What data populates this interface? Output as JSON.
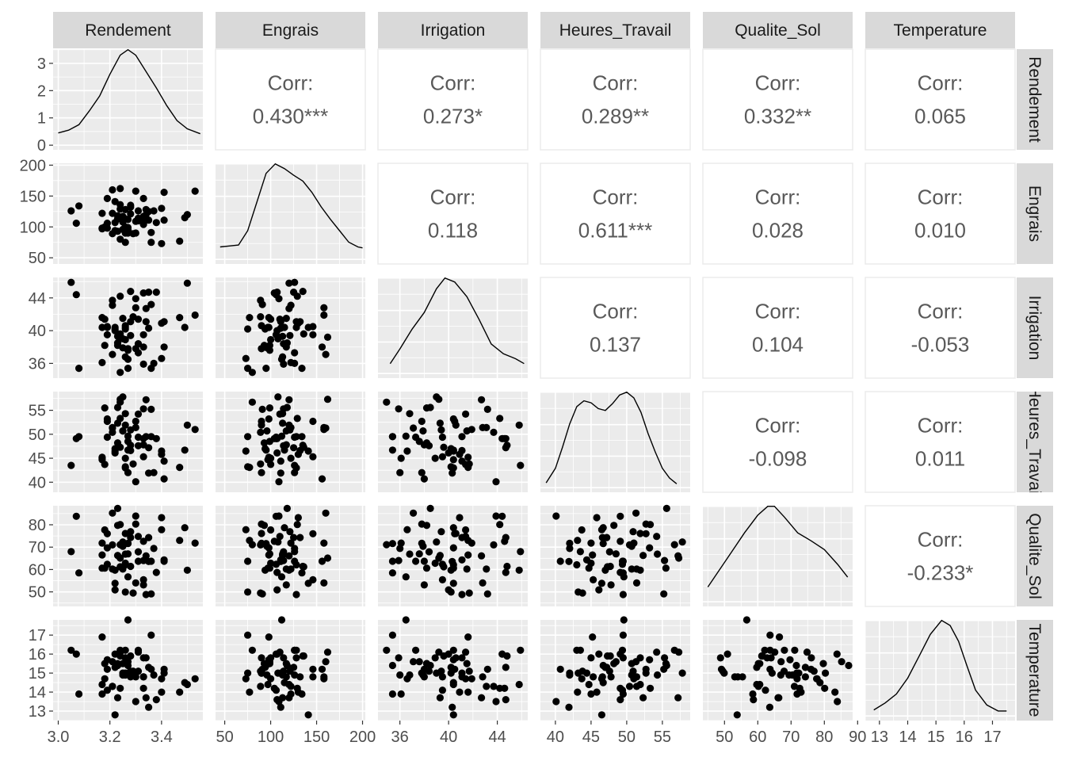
{
  "chart_data": {
    "type": "scatter",
    "title": "",
    "variables": [
      {
        "name": "Rendement",
        "ticks": [
          3.0,
          3.2,
          3.4
        ],
        "tick_labels": [
          "3.0",
          "3.2",
          "3.4"
        ],
        "range": [
          2.98,
          3.56
        ]
      },
      {
        "name": "Engrais",
        "ticks": [
          50,
          100,
          150,
          200
        ],
        "tick_labels": [
          "50",
          "100",
          "150",
          "200"
        ],
        "range": [
          40,
          203
        ]
      },
      {
        "name": "Irrigation",
        "ticks": [
          36,
          40,
          44
        ],
        "tick_labels": [
          "36",
          "40",
          "44"
        ],
        "range": [
          34.2,
          46.5
        ]
      },
      {
        "name": "Heures_Travail",
        "ticks": [
          40,
          45,
          50,
          55
        ],
        "tick_labels": [
          "40",
          "45",
          "50",
          "55"
        ],
        "range": [
          37.9,
          58.9
        ]
      },
      {
        "name": "Qualite_Sol",
        "ticks": [
          50,
          60,
          70,
          80,
          90
        ],
        "tick_labels": [
          "50",
          "60",
          "70",
          "80",
          "90"
        ],
        "range": [
          43.5,
          88.5
        ]
      },
      {
        "name": "Temperature",
        "ticks": [
          13,
          14,
          15,
          16,
          17
        ],
        "tick_labels": [
          "13",
          "14",
          "15",
          "16",
          "17"
        ],
        "range": [
          12.5,
          17.8
        ]
      }
    ],
    "diag_y_axis": {
      "ticks": [
        0,
        1,
        2,
        3
      ],
      "tick_labels": [
        "0",
        "1",
        "2",
        "3"
      ],
      "range": [
        -0.17,
        3.52
      ]
    },
    "correlations": [
      {
        "row": 0,
        "col": 1,
        "label": "Corr:",
        "value": "0.430***"
      },
      {
        "row": 0,
        "col": 2,
        "label": "Corr:",
        "value": "0.273*"
      },
      {
        "row": 0,
        "col": 3,
        "label": "Corr:",
        "value": "0.289**"
      },
      {
        "row": 0,
        "col": 4,
        "label": "Corr:",
        "value": "0.332**"
      },
      {
        "row": 0,
        "col": 5,
        "label": "Corr:",
        "value": "0.065"
      },
      {
        "row": 1,
        "col": 2,
        "label": "Corr:",
        "value": "0.118"
      },
      {
        "row": 1,
        "col": 3,
        "label": "Corr:",
        "value": "0.611***"
      },
      {
        "row": 1,
        "col": 4,
        "label": "Corr:",
        "value": "0.028"
      },
      {
        "row": 1,
        "col": 5,
        "label": "Corr:",
        "value": "0.010"
      },
      {
        "row": 2,
        "col": 3,
        "label": "Corr:",
        "value": "0.137"
      },
      {
        "row": 2,
        "col": 4,
        "label": "Corr:",
        "value": "0.104"
      },
      {
        "row": 2,
        "col": 5,
        "label": "Corr:",
        "value": "-0.053"
      },
      {
        "row": 3,
        "col": 4,
        "label": "Corr:",
        "value": "-0.098"
      },
      {
        "row": 3,
        "col": 5,
        "label": "Corr:",
        "value": "0.011"
      },
      {
        "row": 4,
        "col": 5,
        "label": "Corr:",
        "value": "-0.233*"
      }
    ],
    "densities": [
      [
        [
          3.0,
          0.45
        ],
        [
          3.04,
          0.55
        ],
        [
          3.08,
          0.75
        ],
        [
          3.12,
          1.25
        ],
        [
          3.16,
          1.8
        ],
        [
          3.2,
          2.6
        ],
        [
          3.24,
          3.3
        ],
        [
          3.27,
          3.5
        ],
        [
          3.3,
          3.3
        ],
        [
          3.34,
          2.7
        ],
        [
          3.38,
          2.1
        ],
        [
          3.42,
          1.45
        ],
        [
          3.46,
          0.9
        ],
        [
          3.5,
          0.6
        ],
        [
          3.55,
          0.42
        ]
      ],
      [
        [
          45,
          0.13
        ],
        [
          55,
          0.14
        ],
        [
          65,
          0.15
        ],
        [
          75,
          0.3
        ],
        [
          85,
          0.6
        ],
        [
          95,
          0.9
        ],
        [
          105,
          1.0
        ],
        [
          115,
          0.95
        ],
        [
          125,
          0.88
        ],
        [
          135,
          0.82
        ],
        [
          145,
          0.7
        ],
        [
          155,
          0.55
        ],
        [
          165,
          0.42
        ],
        [
          175,
          0.3
        ],
        [
          185,
          0.18
        ],
        [
          195,
          0.13
        ],
        [
          200,
          0.12
        ]
      ],
      [
        [
          35.2,
          0.1
        ],
        [
          36,
          0.25
        ],
        [
          37,
          0.45
        ],
        [
          38,
          0.62
        ],
        [
          39,
          0.86
        ],
        [
          39.7,
          0.97
        ],
        [
          40.5,
          0.93
        ],
        [
          41.5,
          0.78
        ],
        [
          42.5,
          0.55
        ],
        [
          43.5,
          0.3
        ],
        [
          44.5,
          0.2
        ],
        [
          45.5,
          0.15
        ],
        [
          46.2,
          0.1
        ]
      ],
      [
        [
          38.7,
          0.05
        ],
        [
          40,
          0.2
        ],
        [
          41,
          0.42
        ],
        [
          42,
          0.66
        ],
        [
          43,
          0.84
        ],
        [
          44,
          0.9
        ],
        [
          45,
          0.88
        ],
        [
          46,
          0.82
        ],
        [
          47,
          0.8
        ],
        [
          48,
          0.87
        ],
        [
          49,
          0.96
        ],
        [
          50,
          0.99
        ],
        [
          51,
          0.93
        ],
        [
          52,
          0.78
        ],
        [
          53,
          0.56
        ],
        [
          54,
          0.37
        ],
        [
          55,
          0.2
        ],
        [
          56,
          0.1
        ],
        [
          57,
          0.04
        ]
      ],
      [
        [
          45,
          0.15
        ],
        [
          48,
          0.3
        ],
        [
          52,
          0.5
        ],
        [
          56,
          0.7
        ],
        [
          60,
          0.88
        ],
        [
          63,
          0.97
        ],
        [
          65,
          0.97
        ],
        [
          68,
          0.86
        ],
        [
          72,
          0.7
        ],
        [
          76,
          0.62
        ],
        [
          80,
          0.53
        ],
        [
          84,
          0.38
        ],
        [
          87,
          0.25
        ]
      ],
      [
        [
          12.8,
          0.06
        ],
        [
          13.2,
          0.13
        ],
        [
          13.6,
          0.22
        ],
        [
          14,
          0.38
        ],
        [
          14.4,
          0.6
        ],
        [
          14.8,
          0.82
        ],
        [
          15.2,
          0.96
        ],
        [
          15.5,
          0.91
        ],
        [
          15.8,
          0.75
        ],
        [
          16.1,
          0.5
        ],
        [
          16.4,
          0.26
        ],
        [
          16.8,
          0.11
        ],
        [
          17.2,
          0.05
        ],
        [
          17.5,
          0.05
        ]
      ]
    ],
    "points": [
      [
        3.35,
        125,
        44.7,
        47.2,
        74.3,
        15.3
      ],
      [
        3.27,
        95,
        35.4,
        46.7,
        71.6,
        15.4
      ],
      [
        3.17,
        98,
        41.6,
        45.2,
        66.5,
        16.9
      ],
      [
        3.24,
        162,
        39.2,
        57.3,
        65.1,
        16.1
      ],
      [
        3.5,
        120,
        45.8,
        51.9,
        59.7,
        14.4
      ],
      [
        3.07,
        106,
        44.4,
        49.1,
        83.8,
        16.0
      ],
      [
        3.17,
        122,
        36.1,
        45.0,
        71.8,
        13.9
      ],
      [
        3.41,
        111,
        41.1,
        44.4,
        64.3,
        15.0
      ],
      [
        3.19,
        106,
        39.5,
        49.4,
        62.3,
        14.1
      ],
      [
        3.26,
        128,
        40.4,
        43.0,
        62.1,
        16.2
      ],
      [
        3.21,
        122,
        43.1,
        51.4,
        60.2,
        14.3
      ],
      [
        3.47,
        77,
        41.6,
        43.1,
        73.0,
        14.0
      ],
      [
        3.23,
        93,
        38.2,
        48.2,
        79.7,
        15.5
      ],
      [
        3.24,
        136,
        39.6,
        47.3,
        61.2,
        15.9
      ],
      [
        3.31,
        110,
        41.4,
        54.2,
        74.8,
        16.1
      ],
      [
        3.41,
        156,
        38.0,
        40.7,
        63.7,
        15.2
      ],
      [
        3.23,
        113,
        39.3,
        52.3,
        66.3,
        13.7
      ],
      [
        3.31,
        126,
        37.3,
        49.4,
        63.7,
        16.2
      ],
      [
        3.33,
        146,
        39.5,
        45.3,
        55.4,
        14.8
      ],
      [
        3.36,
        91,
        43.2,
        55.2,
        49.1,
        15.2
      ],
      [
        3.19,
        98,
        40.4,
        53.2,
        69.7,
        15.7
      ],
      [
        3.28,
        135,
        44.8,
        47.7,
        61.4,
        15.9
      ],
      [
        3.08,
        134,
        35.4,
        49.5,
        58.5,
        13.9
      ],
      [
        3.25,
        117,
        41.5,
        50.7,
        60.2,
        15.5
      ],
      [
        3.18,
        100,
        41.4,
        43.7,
        77.7,
        14.7
      ],
      [
        3.33,
        117,
        38.0,
        47.8,
        53.1,
        14.8
      ],
      [
        3.19,
        146,
        40.5,
        52.7,
        76.0,
        15.2
      ],
      [
        3.22,
        141,
        40.4,
        46.5,
        53.8,
        12.8
      ],
      [
        3.36,
        75,
        35.4,
        49.5,
        63.7,
        17.0
      ],
      [
        3.18,
        99,
        38.2,
        55.5,
        60.6,
        15.5
      ],
      [
        3.26,
        75,
        40.2,
        43.2,
        49.9,
        15.0
      ],
      [
        3.23,
        118,
        38.5,
        55.6,
        87.3,
        15.4
      ],
      [
        3.4,
        73,
        36.6,
        46.5,
        77.8,
        14.7
      ],
      [
        3.3,
        158,
        42.8,
        51.4,
        54.0,
        14.8
      ],
      [
        3.35,
        111,
        40.3,
        41.9,
        63.6,
        13.2
      ],
      [
        3.22,
        107,
        40.0,
        46.1,
        50.9,
        16.0
      ],
      [
        3.49,
        115,
        40.4,
        46.7,
        78.7,
        14.5
      ],
      [
        3.34,
        120,
        42.7,
        57.2,
        66.1,
        13.7
      ],
      [
        3.27,
        112,
        36.5,
        49.6,
        56.7,
        17.8
      ],
      [
        3.26,
        90,
        40.6,
        51.9,
        76.1,
        15.8
      ],
      [
        3.25,
        96,
        37.9,
        50.7,
        70.4,
        14.9
      ],
      [
        3.3,
        90,
        37.8,
        52.7,
        80.3,
        15.0
      ],
      [
        3.21,
        89,
        43.7,
        50.4,
        71.0,
        14.3
      ],
      [
        3.53,
        158,
        41.9,
        51.0,
        71.8,
        14.7
      ],
      [
        3.05,
        126,
        45.9,
        43.5,
        68.0,
        16.2
      ],
      [
        3.34,
        128,
        41.1,
        49.5,
        48.8,
        15.8
      ],
      [
        3.26,
        100,
        38.9,
        45.0,
        62.8,
        15.8
      ],
      [
        3.38,
        107,
        44.7,
        49.1,
        58.7,
        13.6
      ],
      [
        3.28,
        121,
        39.4,
        50.9,
        76.9,
        15.1
      ],
      [
        3.3,
        109,
        43.9,
        40.1,
        83.9,
        13.5
      ],
      [
        3.33,
        114,
        35.9,
        55.3,
        64.0,
        15.8
      ],
      [
        3.21,
        160,
        37.1,
        51.3,
        85.2,
        15.6
      ],
      [
        3.27,
        99,
        37.6,
        48.5,
        67.0,
        15.6
      ],
      [
        3.29,
        89,
        41.7,
        43.8,
        49.5,
        15.1
      ],
      [
        3.24,
        80,
        34.9,
        56.7,
        71.1,
        16.2
      ],
      [
        3.31,
        114,
        38.4,
        47.6,
        67.9,
        15.1
      ],
      [
        3.22,
        94,
        40.2,
        47.0,
        59.7,
        15.3
      ],
      [
        3.27,
        90,
        37.8,
        42.0,
        71.7,
        15.0
      ],
      [
        3.25,
        108,
        39.0,
        57.8,
        72.3,
        15.0
      ],
      [
        3.28,
        132,
        41.1,
        46.6,
        74.3,
        14.8
      ],
      [
        3.17,
        97,
        40.4,
        44.7,
        60.6,
        14.4
      ],
      [
        3.37,
        126,
        36.0,
        42.0,
        69.4,
        14.9
      ],
      [
        3.4,
        130,
        40.9,
        45.8,
        83.2,
        14.0
      ],
      [
        3.26,
        113,
        36.8,
        54.3,
        66.9,
        14.9
      ],
      [
        3.24,
        129,
        44.2,
        53.3,
        80.1,
        14.2
      ],
      [
        3.33,
        104,
        44.6,
        49.1,
        72.6,
        14.2
      ]
    ]
  }
}
